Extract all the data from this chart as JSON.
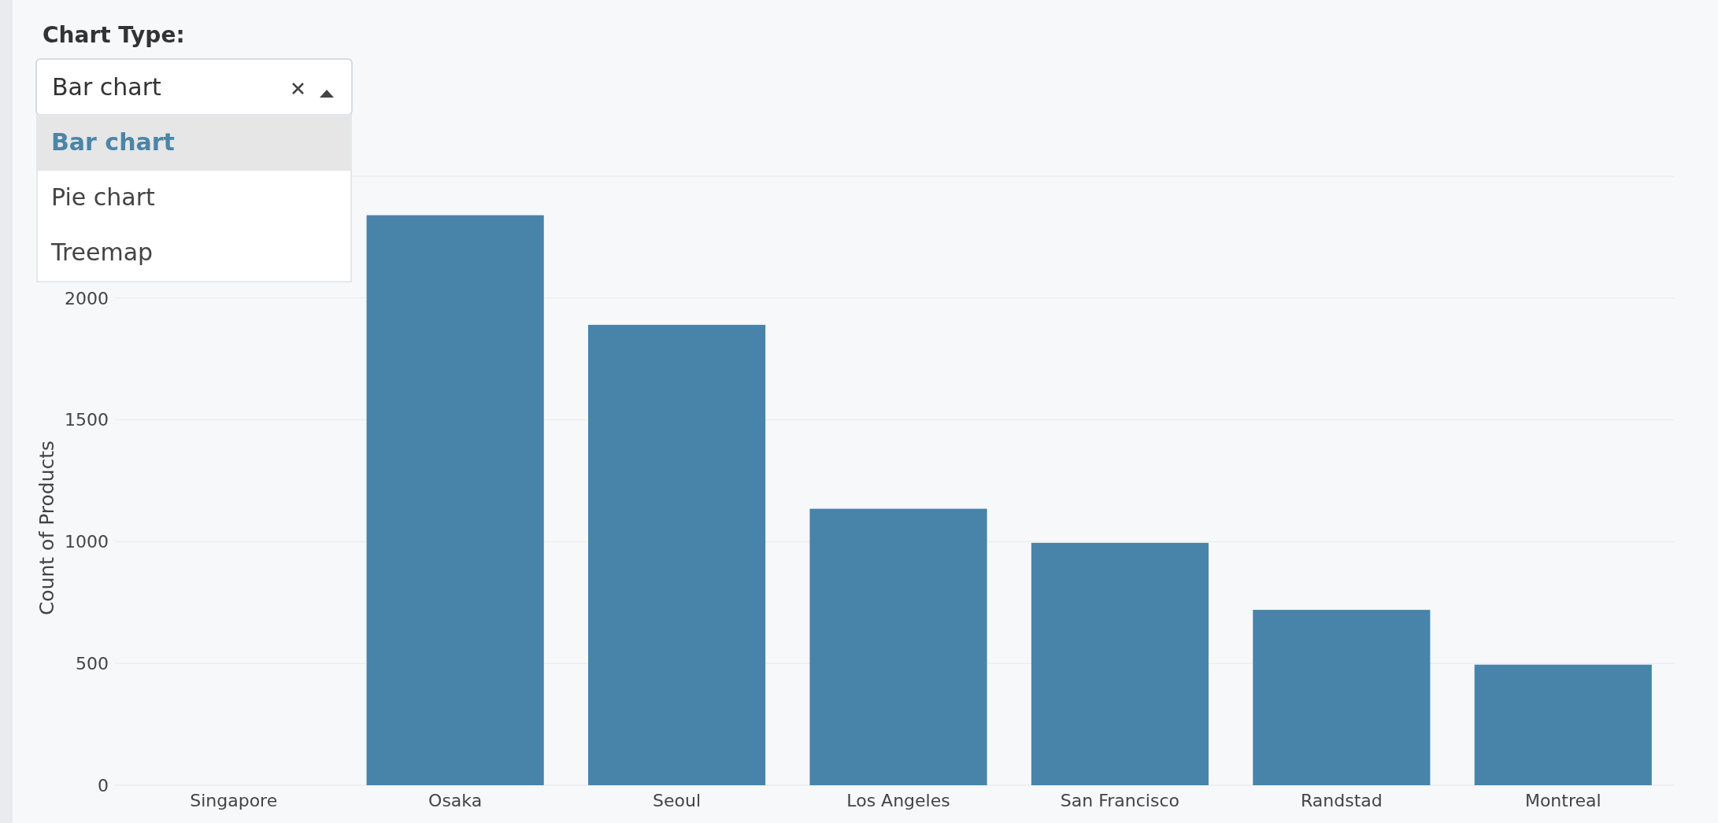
{
  "chart_data": {
    "type": "bar",
    "ylabel": "Count of Products",
    "categories": [
      "Singapore",
      "Osaka",
      "Seoul",
      "Los Angeles",
      "San Francisco",
      "Randstad",
      "Montreal"
    ],
    "values": [
      null,
      2340,
      1890,
      1135,
      995,
      720,
      495
    ],
    "color": "#4884a9",
    "ylim": [
      0,
      2500
    ],
    "yticks": [
      0,
      500,
      1000,
      1500,
      2000,
      {
        "value": 2500,
        "label": null
      }
    ],
    "grid": "y",
    "annotations": [
      "Chart Type:",
      "Bar chart",
      "Bar chart",
      "Pie chart",
      "Treemap"
    ]
  }
}
